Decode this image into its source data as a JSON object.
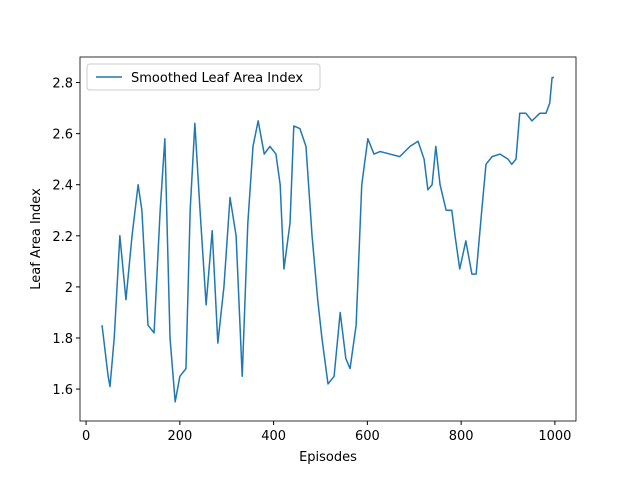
{
  "chart_data": {
    "type": "line",
    "xlabel": "Episodes",
    "ylabel": "Leaf Area Index",
    "x": [
      34,
      47,
      51,
      60,
      72,
      85,
      98,
      111,
      119,
      132,
      145,
      158,
      168,
      179,
      190,
      200,
      213,
      222,
      232,
      243,
      256,
      269,
      281,
      294,
      307,
      320,
      333,
      345,
      356,
      367,
      380,
      392,
      405,
      414,
      422,
      435,
      443,
      456,
      469,
      482,
      494,
      503,
      516,
      529,
      542,
      554,
      563,
      576,
      588,
      601,
      614,
      627,
      648,
      669,
      691,
      708,
      721,
      729,
      738,
      746,
      755,
      768,
      780,
      787,
      797,
      810,
      823,
      832,
      844,
      853,
      866,
      883,
      900,
      908,
      917,
      925,
      938,
      951,
      968,
      981,
      989,
      994,
      998
    ],
    "series": [
      {
        "name": "Smoothed Leaf Area Index",
        "color": "#1f77b4",
        "values": [
          1.85,
          1.65,
          1.61,
          1.8,
          2.2,
          1.95,
          2.2,
          2.4,
          2.3,
          1.85,
          1.82,
          2.3,
          2.58,
          1.8,
          1.55,
          1.65,
          1.68,
          2.3,
          2.64,
          2.3,
          1.93,
          2.22,
          1.78,
          2.0,
          2.35,
          2.2,
          1.65,
          2.25,
          2.55,
          2.65,
          2.52,
          2.55,
          2.52,
          2.4,
          2.07,
          2.25,
          2.63,
          2.62,
          2.55,
          2.2,
          1.95,
          1.8,
          1.62,
          1.65,
          1.9,
          1.72,
          1.68,
          1.85,
          2.4,
          2.58,
          2.52,
          2.53,
          2.52,
          2.51,
          2.55,
          2.57,
          2.5,
          2.38,
          2.4,
          2.55,
          2.4,
          2.3,
          2.3,
          2.2,
          2.07,
          2.18,
          2.05,
          2.05,
          2.3,
          2.48,
          2.51,
          2.52,
          2.5,
          2.48,
          2.5,
          2.68,
          2.68,
          2.65,
          2.68,
          2.68,
          2.72,
          2.82,
          2.82
        ]
      }
    ],
    "xlim": [
      -13,
      1045
    ],
    "xticks": [
      0,
      200,
      400,
      600,
      800,
      1000
    ],
    "ylim": [
      1.475,
      2.9
    ],
    "yticks": [
      1.6,
      1.8,
      2.0,
      2.2,
      2.4,
      2.6,
      2.8
    ],
    "legend": "upper left"
  }
}
